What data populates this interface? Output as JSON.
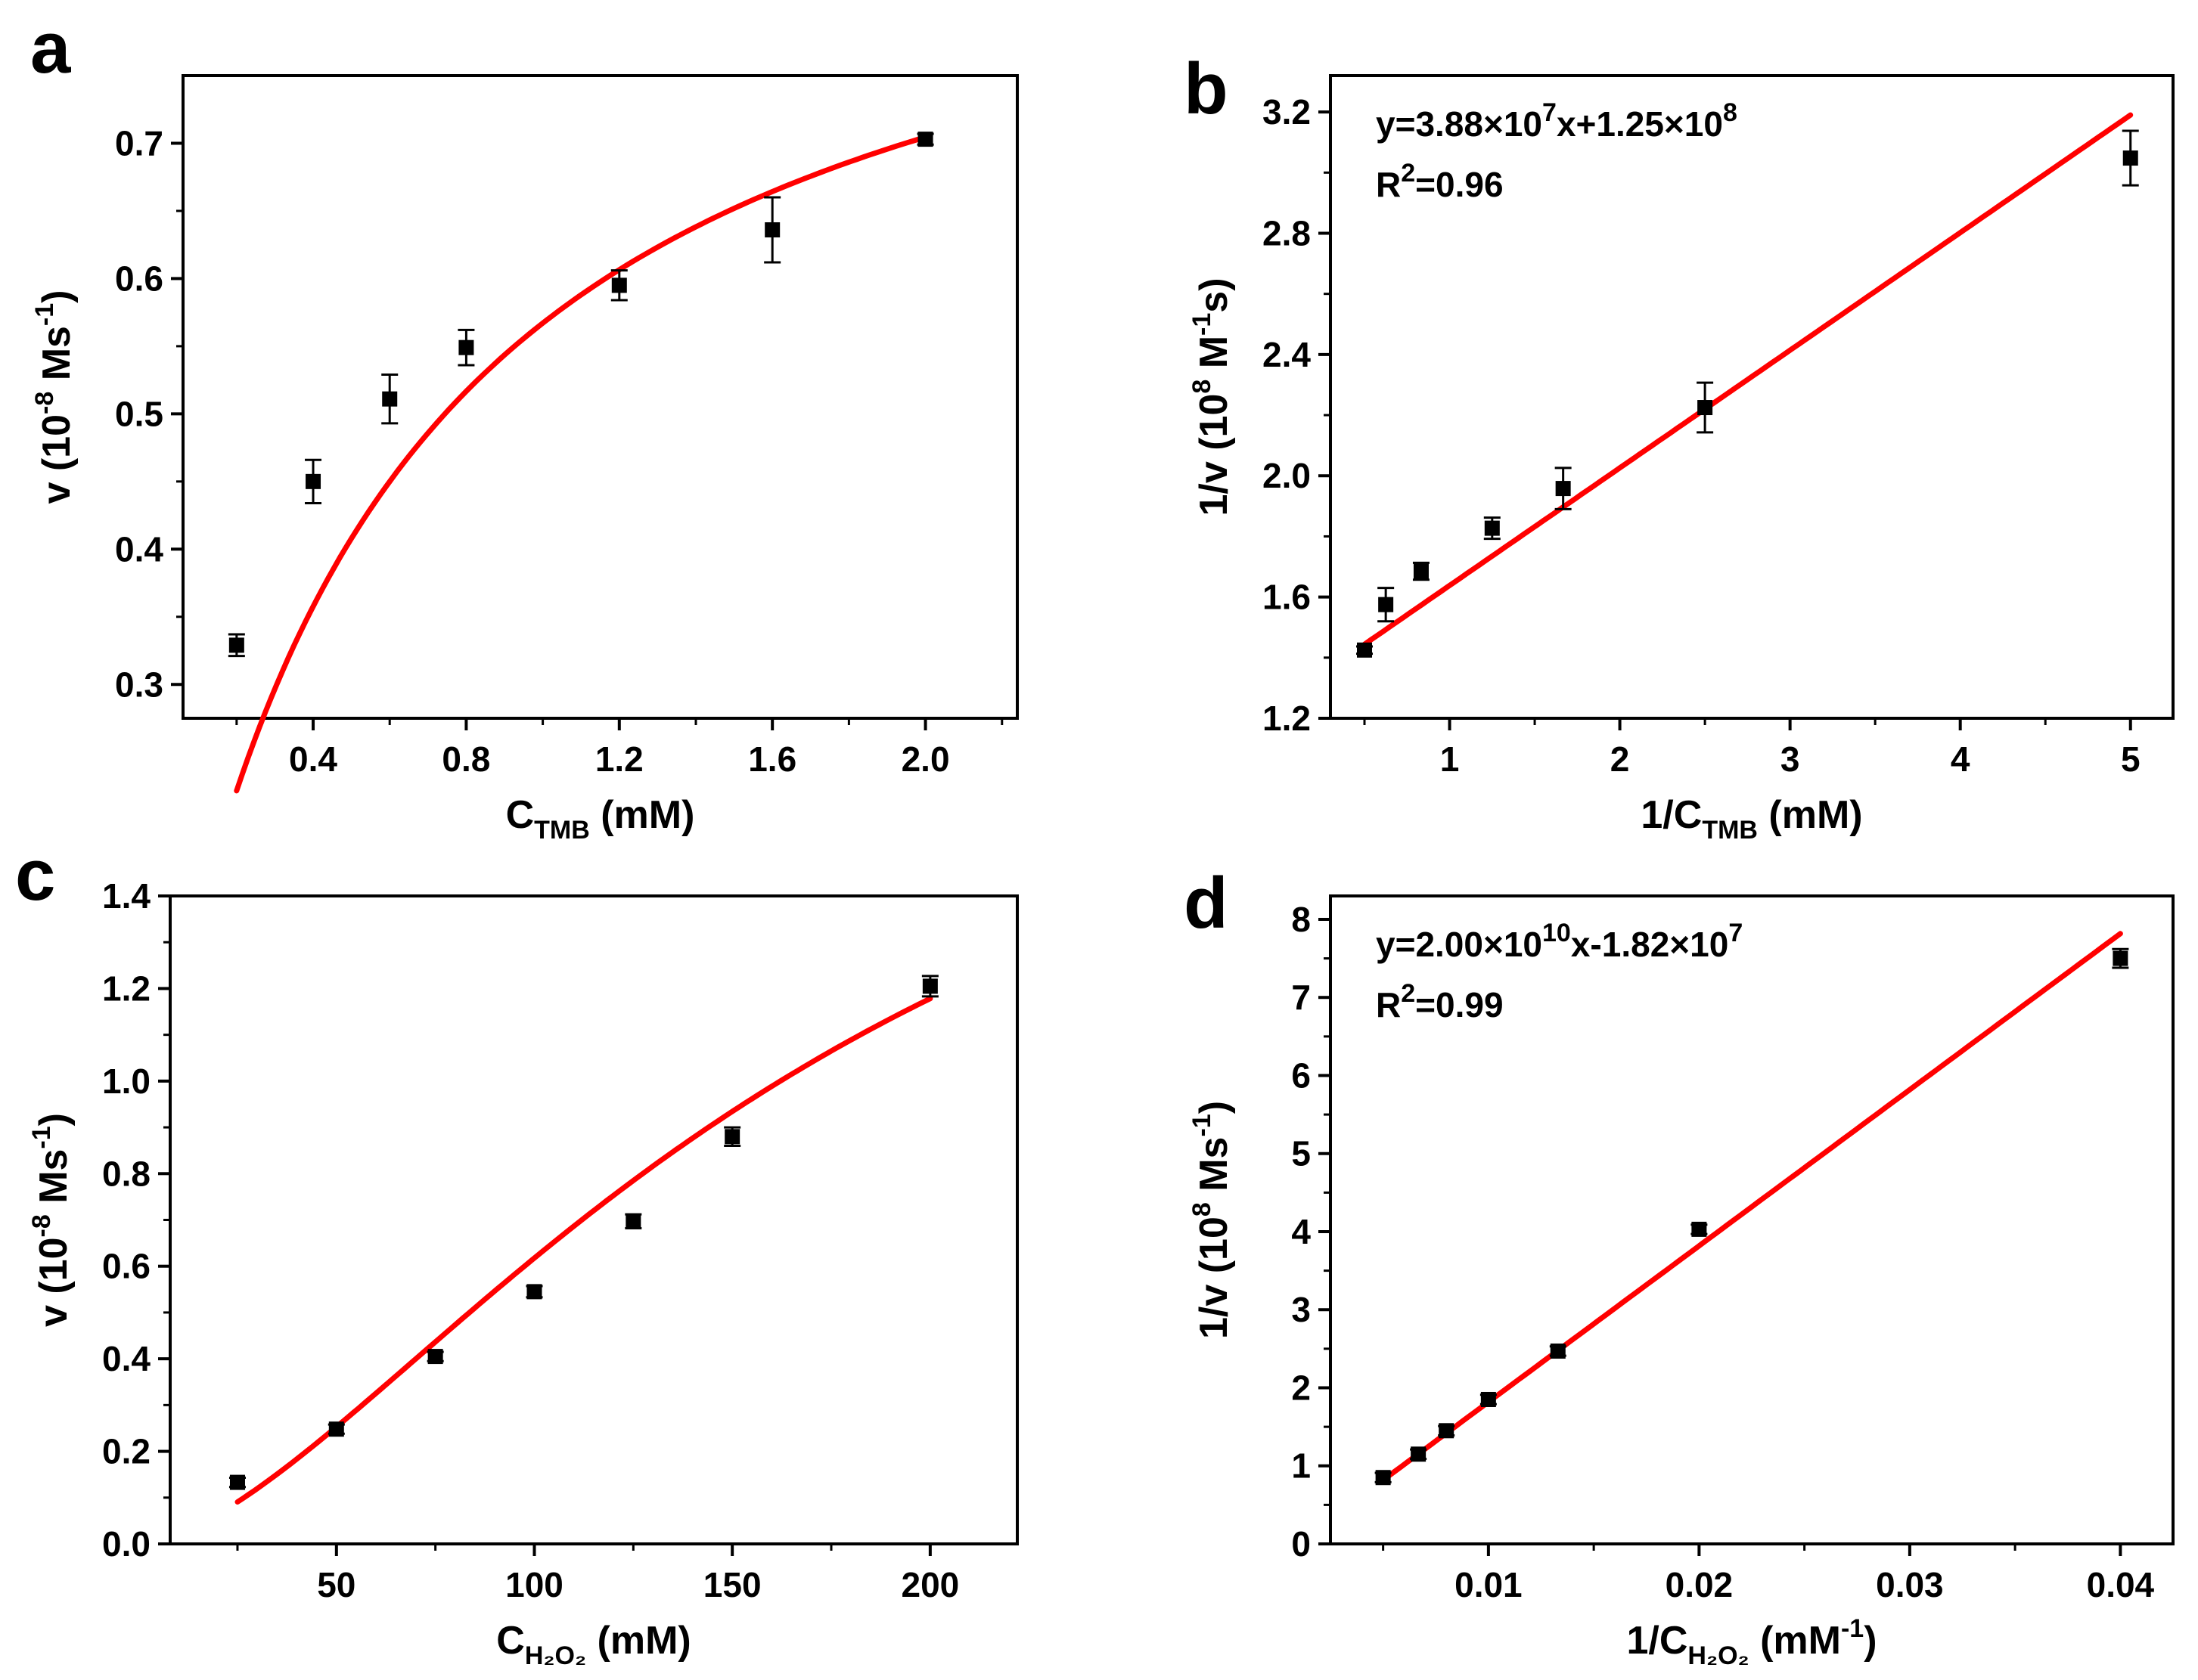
{
  "figure": {
    "background": "#ffffff"
  },
  "chart_data": [
    {
      "panel": "a",
      "type": "scatter",
      "fit": "Michaelis-Menten",
      "xlabel": {
        "main": "C",
        "sub": "TMB",
        "tail": " (mM)"
      },
      "ylabel": {
        "main": "v (10",
        "sup": "-8",
        "mid": " Ms",
        "sup2": "-1",
        "tail": ")"
      },
      "xlim": [
        0.06,
        2.24
      ],
      "ylim": [
        0.275,
        0.75
      ],
      "xticks": [
        0.4,
        0.8,
        1.2,
        1.6,
        2.0
      ],
      "xtick_labels": [
        "0.4",
        "0.8",
        "1.2",
        "1.6",
        "2.0"
      ],
      "yticks": [
        0.3,
        0.4,
        0.5,
        0.6,
        0.7
      ],
      "ytick_labels": [
        "0.3",
        "0.4",
        "0.5",
        "0.6",
        "0.7"
      ],
      "points": [
        {
          "x": 0.2,
          "y": 0.329,
          "err": 0.008
        },
        {
          "x": 0.4,
          "y": 0.45,
          "err": 0.016
        },
        {
          "x": 0.6,
          "y": 0.511,
          "err": 0.018
        },
        {
          "x": 0.8,
          "y": 0.549,
          "err": 0.013
        },
        {
          "x": 1.2,
          "y": 0.595,
          "err": 0.011
        },
        {
          "x": 1.6,
          "y": 0.636,
          "err": 0.024
        },
        {
          "x": 2.0,
          "y": 0.703,
          "err": 0.004
        }
      ],
      "fit_line": {
        "vmax": 0.93,
        "km": 0.64,
        "x_start": 0.2,
        "x_end": 2.0,
        "color": "#ff0000"
      },
      "equation": null,
      "r2": null
    },
    {
      "panel": "b",
      "type": "scatter",
      "fit": "linear",
      "xlabel": {
        "main": "1/C",
        "sub": "TMB",
        "tail": " (mM)"
      },
      "ylabel": {
        "main": "1/v (10",
        "sup": "8",
        "mid": " M",
        "sup2": "-1",
        "tail": "s)"
      },
      "xlim": [
        0.3,
        5.25
      ],
      "ylim": [
        1.2,
        3.32
      ],
      "xticks": [
        1,
        2,
        3,
        4,
        5
      ],
      "xtick_labels": [
        "1",
        "2",
        "3",
        "4",
        "5"
      ],
      "yticks": [
        1.2,
        1.6,
        2.0,
        2.4,
        2.8,
        3.2
      ],
      "ytick_labels": [
        "1.2",
        "1.6",
        "2.0",
        "2.4",
        "2.8",
        "3.2"
      ],
      "points": [
        {
          "x": 0.5,
          "y": 1.425,
          "err": 0.012
        },
        {
          "x": 0.625,
          "y": 1.575,
          "err": 0.055
        },
        {
          "x": 0.833,
          "y": 1.685,
          "err": 0.028
        },
        {
          "x": 1.25,
          "y": 1.827,
          "err": 0.035
        },
        {
          "x": 1.667,
          "y": 1.958,
          "err": 0.068
        },
        {
          "x": 2.5,
          "y": 2.225,
          "err": 0.082
        },
        {
          "x": 5.0,
          "y": 3.048,
          "err": 0.09
        }
      ],
      "fit_line": {
        "slope": 0.388,
        "intercept": 1.25,
        "x_start": 0.5,
        "x_end": 5.0,
        "color": "#ff0000"
      },
      "equation": {
        "pre": "y=3.88×10",
        "sup1": "7",
        "mid": "x+1.25×10",
        "sup2": "8"
      },
      "r2": {
        "pre": "R",
        "sup": "2",
        "post": "=0.96"
      }
    },
    {
      "panel": "c",
      "type": "scatter",
      "fit": "Hill",
      "xlabel": {
        "main": "C",
        "sub": "H₂O₂",
        "tail": " (mM)"
      },
      "ylabel": {
        "main": "v (10",
        "sup": "-8",
        "mid": " Ms",
        "sup2": "-1",
        "tail": ")"
      },
      "xlim": [
        8,
        222
      ],
      "ylim": [
        0.0,
        1.4
      ],
      "xticks": [
        50,
        100,
        150,
        200
      ],
      "xtick_labels": [
        "50",
        "100",
        "150",
        "200"
      ],
      "yticks": [
        0.0,
        0.2,
        0.4,
        0.6,
        0.8,
        1.0,
        1.2,
        1.4
      ],
      "ytick_labels": [
        "0.0",
        "0.2",
        "0.4",
        "0.6",
        "0.8",
        "1.0",
        "1.2",
        "1.4"
      ],
      "points": [
        {
          "x": 25,
          "y": 0.133,
          "err": 0.01
        },
        {
          "x": 50,
          "y": 0.248,
          "err": 0.01
        },
        {
          "x": 75,
          "y": 0.405,
          "err": 0.01
        },
        {
          "x": 100,
          "y": 0.545,
          "err": 0.012
        },
        {
          "x": 125,
          "y": 0.697,
          "err": 0.015
        },
        {
          "x": 150,
          "y": 0.88,
          "err": 0.02
        },
        {
          "x": 200,
          "y": 1.205,
          "err": 0.022
        }
      ],
      "fit_line": {
        "vmax": 2.13,
        "k": 175,
        "n": 1.6,
        "x_start": 25,
        "x_end": 200,
        "color": "#ff0000"
      },
      "equation": null,
      "r2": null
    },
    {
      "panel": "d",
      "type": "scatter",
      "fit": "linear",
      "xlabel": {
        "main": "1/C",
        "sub": "H₂O₂",
        "tail": " (mM",
        "sup": "-1",
        "tail2": ")"
      },
      "ylabel": {
        "main": "1/v (10",
        "sup": "8",
        "mid": " Ms",
        "sup2": "-1",
        "tail": ")"
      },
      "xlim": [
        0.0025,
        0.0425
      ],
      "ylim": [
        0,
        8.3
      ],
      "xticks": [
        0.01,
        0.02,
        0.03,
        0.04
      ],
      "xtick_labels": [
        "0.01",
        "0.02",
        "0.03",
        "0.04"
      ],
      "yticks": [
        0,
        1,
        2,
        3,
        4,
        5,
        6,
        7,
        8
      ],
      "ytick_labels": [
        "0",
        "1",
        "2",
        "3",
        "4",
        "5",
        "6",
        "7",
        "8"
      ],
      "points": [
        {
          "x": 0.005,
          "y": 0.85,
          "err": 0.06
        },
        {
          "x": 0.00667,
          "y": 1.15,
          "err": 0.06
        },
        {
          "x": 0.008,
          "y": 1.45,
          "err": 0.06
        },
        {
          "x": 0.01,
          "y": 1.85,
          "err": 0.06
        },
        {
          "x": 0.0133,
          "y": 2.47,
          "err": 0.06
        },
        {
          "x": 0.02,
          "y": 4.03,
          "err": 0.06
        },
        {
          "x": 0.04,
          "y": 7.5,
          "err": 0.12
        }
      ],
      "fit_line": {
        "slope": 200.0,
        "intercept": -0.182,
        "x_start": 0.005,
        "x_end": 0.04,
        "color": "#ff0000"
      },
      "equation": {
        "pre": "y=2.00×10",
        "sup1": "10",
        "mid": "x-1.82×10",
        "sup2": "7"
      },
      "r2": {
        "pre": "R",
        "sup": "2",
        "post": "=0.99"
      }
    }
  ]
}
